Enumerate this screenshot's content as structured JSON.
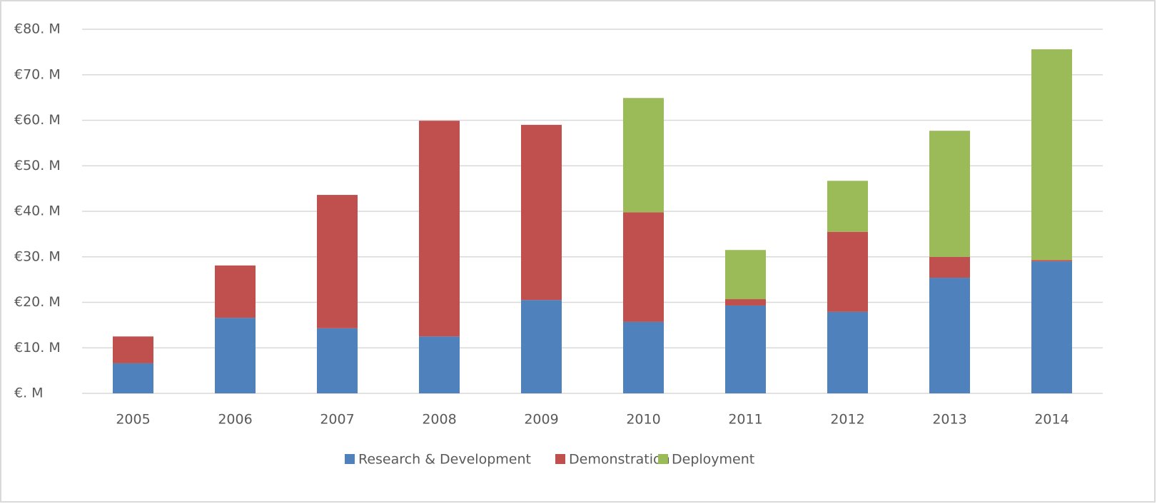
{
  "chart_data": {
    "type": "stacked_bar",
    "categories": [
      "2005",
      "2006",
      "2007",
      "2008",
      "2009",
      "2010",
      "2011",
      "2012",
      "2013",
      "2014"
    ],
    "series": [
      {
        "name": "Research & Development",
        "color": "#4f81bd",
        "values": [
          6.6,
          16.6,
          14.3,
          12.5,
          20.5,
          15.7,
          19.3,
          17.9,
          25.4,
          29.0
        ]
      },
      {
        "name": "Demonstration",
        "color": "#c0504d",
        "values": [
          5.9,
          11.5,
          29.3,
          47.4,
          38.5,
          24.1,
          1.4,
          17.6,
          4.6,
          0.3
        ]
      },
      {
        "name": "Deployment",
        "color": "#9bbb59",
        "values": [
          0,
          0,
          0,
          0,
          0,
          25.1,
          10.8,
          11.2,
          27.7,
          46.3
        ]
      }
    ],
    "ylim": [
      0,
      80
    ],
    "yticks": [
      {
        "value": 0,
        "label": "€. M"
      },
      {
        "value": 10,
        "label": "€10. M"
      },
      {
        "value": 20,
        "label": "€20. M"
      },
      {
        "value": 30,
        "label": "€30. M"
      },
      {
        "value": 40,
        "label": "€40. M"
      },
      {
        "value": 50,
        "label": "€50. M"
      },
      {
        "value": 60,
        "label": "€60. M"
      },
      {
        "value": 70,
        "label": "€70. M"
      },
      {
        "value": 80,
        "label": "€80. M"
      }
    ],
    "grid": true,
    "legend": "bottom"
  }
}
